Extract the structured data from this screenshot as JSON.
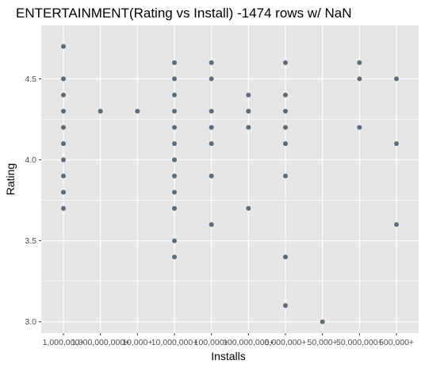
{
  "chart_data": {
    "type": "scatter",
    "title": "ENTERTAINMENT(Rating vs Install) -1474 rows w/ NaN",
    "xlabel": "Installs",
    "ylabel": "Rating",
    "x_categories": [
      "1,000,000+",
      "1,000,000,000+",
      "10,000+",
      "10,000,000+",
      "100,000+",
      "100,000,000+",
      "5,000,000+",
      "50,000+",
      "50,000,000+",
      "500,000+"
    ],
    "x_tick_labels": [
      "1,000,000+",
      "1,000,000,000+",
      "10,000+",
      "10,000,000+",
      "100,000+",
      "100,000,000+",
      "5,000,000+",
      "50,000+",
      "50,000,000+",
      "500,000+"
    ],
    "ylim": [
      2.93,
      4.83
    ],
    "y_ticks": [
      3.0,
      3.5,
      4.0,
      4.5
    ],
    "y_tick_labels": [
      "3.0",
      "3.5",
      "4.0",
      "4.5"
    ],
    "grid": true,
    "point_color": "#5f6b78",
    "panel_color": "#e6e6e6",
    "points": [
      {
        "x": "1,000,000+",
        "y": 4.7
      },
      {
        "x": "1,000,000+",
        "y": 4.5
      },
      {
        "x": "1,000,000+",
        "y": 4.4
      },
      {
        "x": "1,000,000+",
        "y": 4.3
      },
      {
        "x": "1,000,000+",
        "y": 4.2
      },
      {
        "x": "1,000,000+",
        "y": 4.1
      },
      {
        "x": "1,000,000+",
        "y": 4.0
      },
      {
        "x": "1,000,000+",
        "y": 3.9
      },
      {
        "x": "1,000,000+",
        "y": 3.8
      },
      {
        "x": "1,000,000+",
        "y": 3.7
      },
      {
        "x": "1,000,000,000+",
        "y": 4.3
      },
      {
        "x": "10,000+",
        "y": 4.3
      },
      {
        "x": "10,000,000+",
        "y": 4.6
      },
      {
        "x": "10,000,000+",
        "y": 4.5
      },
      {
        "x": "10,000,000+",
        "y": 4.4
      },
      {
        "x": "10,000,000+",
        "y": 4.3
      },
      {
        "x": "10,000,000+",
        "y": 4.2
      },
      {
        "x": "10,000,000+",
        "y": 4.1
      },
      {
        "x": "10,000,000+",
        "y": 4.0
      },
      {
        "x": "10,000,000+",
        "y": 3.9
      },
      {
        "x": "10,000,000+",
        "y": 3.8
      },
      {
        "x": "10,000,000+",
        "y": 3.7
      },
      {
        "x": "10,000,000+",
        "y": 3.5
      },
      {
        "x": "10,000,000+",
        "y": 3.4
      },
      {
        "x": "100,000+",
        "y": 4.6
      },
      {
        "x": "100,000+",
        "y": 4.5
      },
      {
        "x": "100,000+",
        "y": 4.3
      },
      {
        "x": "100,000+",
        "y": 4.2
      },
      {
        "x": "100,000+",
        "y": 4.1
      },
      {
        "x": "100,000+",
        "y": 3.9
      },
      {
        "x": "100,000+",
        "y": 3.6
      },
      {
        "x": "100,000,000+",
        "y": 4.4
      },
      {
        "x": "100,000,000+",
        "y": 4.3
      },
      {
        "x": "100,000,000+",
        "y": 4.2
      },
      {
        "x": "100,000,000+",
        "y": 3.7
      },
      {
        "x": "5,000,000+",
        "y": 4.6
      },
      {
        "x": "5,000,000+",
        "y": 4.4
      },
      {
        "x": "5,000,000+",
        "y": 4.3
      },
      {
        "x": "5,000,000+",
        "y": 4.2
      },
      {
        "x": "5,000,000+",
        "y": 4.1
      },
      {
        "x": "5,000,000+",
        "y": 3.9
      },
      {
        "x": "5,000,000+",
        "y": 3.4
      },
      {
        "x": "5,000,000+",
        "y": 3.1
      },
      {
        "x": "50,000+",
        "y": 3.0
      },
      {
        "x": "50,000,000+",
        "y": 4.6
      },
      {
        "x": "50,000,000+",
        "y": 4.5
      },
      {
        "x": "50,000,000+",
        "y": 4.2
      },
      {
        "x": "500,000+",
        "y": 4.5
      },
      {
        "x": "500,000+",
        "y": 4.1
      },
      {
        "x": "500,000+",
        "y": 3.6
      }
    ]
  }
}
